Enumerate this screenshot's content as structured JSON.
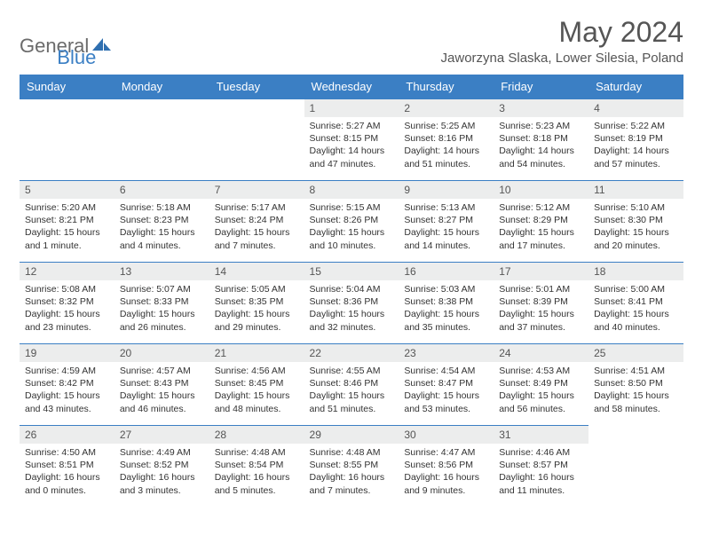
{
  "brand": {
    "part1": "General",
    "part2": "Blue"
  },
  "title": "May 2024",
  "location": "Jaworzyna Slaska, Lower Silesia, Poland",
  "colors": {
    "header_bg": "#3b7fc4",
    "header_text": "#ffffff",
    "daynum_bg": "#eceded",
    "text": "#333333",
    "title_text": "#555555",
    "border": "#3b7fc4",
    "background": "#ffffff"
  },
  "weekdays": [
    "Sunday",
    "Monday",
    "Tuesday",
    "Wednesday",
    "Thursday",
    "Friday",
    "Saturday"
  ],
  "weeks": [
    [
      null,
      null,
      null,
      {
        "n": "1",
        "sr": "5:27 AM",
        "ss": "8:15 PM",
        "dl": "14 hours and 47 minutes."
      },
      {
        "n": "2",
        "sr": "5:25 AM",
        "ss": "8:16 PM",
        "dl": "14 hours and 51 minutes."
      },
      {
        "n": "3",
        "sr": "5:23 AM",
        "ss": "8:18 PM",
        "dl": "14 hours and 54 minutes."
      },
      {
        "n": "4",
        "sr": "5:22 AM",
        "ss": "8:19 PM",
        "dl": "14 hours and 57 minutes."
      }
    ],
    [
      {
        "n": "5",
        "sr": "5:20 AM",
        "ss": "8:21 PM",
        "dl": "15 hours and 1 minute."
      },
      {
        "n": "6",
        "sr": "5:18 AM",
        "ss": "8:23 PM",
        "dl": "15 hours and 4 minutes."
      },
      {
        "n": "7",
        "sr": "5:17 AM",
        "ss": "8:24 PM",
        "dl": "15 hours and 7 minutes."
      },
      {
        "n": "8",
        "sr": "5:15 AM",
        "ss": "8:26 PM",
        "dl": "15 hours and 10 minutes."
      },
      {
        "n": "9",
        "sr": "5:13 AM",
        "ss": "8:27 PM",
        "dl": "15 hours and 14 minutes."
      },
      {
        "n": "10",
        "sr": "5:12 AM",
        "ss": "8:29 PM",
        "dl": "15 hours and 17 minutes."
      },
      {
        "n": "11",
        "sr": "5:10 AM",
        "ss": "8:30 PM",
        "dl": "15 hours and 20 minutes."
      }
    ],
    [
      {
        "n": "12",
        "sr": "5:08 AM",
        "ss": "8:32 PM",
        "dl": "15 hours and 23 minutes."
      },
      {
        "n": "13",
        "sr": "5:07 AM",
        "ss": "8:33 PM",
        "dl": "15 hours and 26 minutes."
      },
      {
        "n": "14",
        "sr": "5:05 AM",
        "ss": "8:35 PM",
        "dl": "15 hours and 29 minutes."
      },
      {
        "n": "15",
        "sr": "5:04 AM",
        "ss": "8:36 PM",
        "dl": "15 hours and 32 minutes."
      },
      {
        "n": "16",
        "sr": "5:03 AM",
        "ss": "8:38 PM",
        "dl": "15 hours and 35 minutes."
      },
      {
        "n": "17",
        "sr": "5:01 AM",
        "ss": "8:39 PM",
        "dl": "15 hours and 37 minutes."
      },
      {
        "n": "18",
        "sr": "5:00 AM",
        "ss": "8:41 PM",
        "dl": "15 hours and 40 minutes."
      }
    ],
    [
      {
        "n": "19",
        "sr": "4:59 AM",
        "ss": "8:42 PM",
        "dl": "15 hours and 43 minutes."
      },
      {
        "n": "20",
        "sr": "4:57 AM",
        "ss": "8:43 PM",
        "dl": "15 hours and 46 minutes."
      },
      {
        "n": "21",
        "sr": "4:56 AM",
        "ss": "8:45 PM",
        "dl": "15 hours and 48 minutes."
      },
      {
        "n": "22",
        "sr": "4:55 AM",
        "ss": "8:46 PM",
        "dl": "15 hours and 51 minutes."
      },
      {
        "n": "23",
        "sr": "4:54 AM",
        "ss": "8:47 PM",
        "dl": "15 hours and 53 minutes."
      },
      {
        "n": "24",
        "sr": "4:53 AM",
        "ss": "8:49 PM",
        "dl": "15 hours and 56 minutes."
      },
      {
        "n": "25",
        "sr": "4:51 AM",
        "ss": "8:50 PM",
        "dl": "15 hours and 58 minutes."
      }
    ],
    [
      {
        "n": "26",
        "sr": "4:50 AM",
        "ss": "8:51 PM",
        "dl": "16 hours and 0 minutes."
      },
      {
        "n": "27",
        "sr": "4:49 AM",
        "ss": "8:52 PM",
        "dl": "16 hours and 3 minutes."
      },
      {
        "n": "28",
        "sr": "4:48 AM",
        "ss": "8:54 PM",
        "dl": "16 hours and 5 minutes."
      },
      {
        "n": "29",
        "sr": "4:48 AM",
        "ss": "8:55 PM",
        "dl": "16 hours and 7 minutes."
      },
      {
        "n": "30",
        "sr": "4:47 AM",
        "ss": "8:56 PM",
        "dl": "16 hours and 9 minutes."
      },
      {
        "n": "31",
        "sr": "4:46 AM",
        "ss": "8:57 PM",
        "dl": "16 hours and 11 minutes."
      },
      null
    ]
  ],
  "labels": {
    "sunrise": "Sunrise:",
    "sunset": "Sunset:",
    "daylight": "Daylight:"
  }
}
